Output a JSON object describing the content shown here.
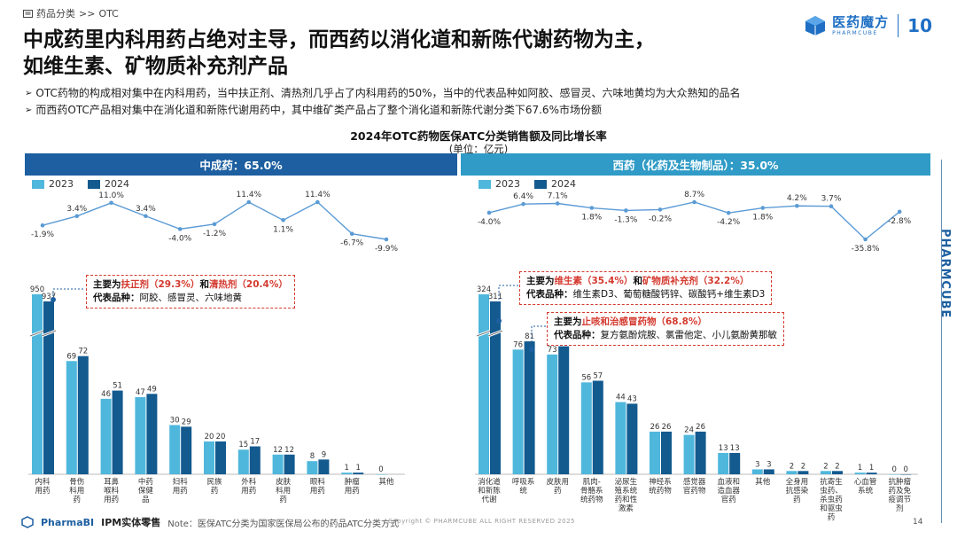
{
  "breadcrumb": {
    "section": "药品分类",
    "sep": ">>",
    "current": "OTC"
  },
  "logo": {
    "cn": "医药魔方",
    "en": "PHARMCUBE",
    "anniversary": "10"
  },
  "headline": {
    "line1": "中成药里内科用药占绝对主导，而西药以消化道和新陈代谢药物为主，",
    "line2": "如维生素、矿物质补充剂产品"
  },
  "bullets": [
    "OTC药物的构成相对集中在内科用药，当中扶正剂、清热剂几乎占了内科用药的50%，当中的代表品种如阿胶、感冒灵、六味地黄均为大众熟知的品名",
    "而西药OTC产品相对集中在消化道和新陈代谢用药中，其中维矿类产品占了整个消化道和新陈代谢分类下67.6%市场份额"
  ],
  "colors": {
    "c2023": "#4fb7dc",
    "c2024": "#135a8f",
    "growth_line": "#5b9bd5",
    "band_left": "#1d5fa0",
    "band_right": "#2f9bc6",
    "callout_red": "#d43a2f"
  },
  "vertical_brand": "PHARMCUBE",
  "callouts": {
    "left": {
      "line1_prefix": "主要为",
      "item1": "扶正剂（29.3%）",
      "mid": "和",
      "item2": "清热剂（20.4%）",
      "line2_label": "代表品种：",
      "line2_text": "阿胶、感冒灵、六味地黄"
    },
    "right1": {
      "line1_prefix": "主要为",
      "item1": "维生素（35.4%）",
      "mid": "和",
      "item2": "矿物质补充剂（32.2%）",
      "line2_label": "代表品种：",
      "line2_text": "维生素D3、葡萄糖酸钙锌、碳酸钙+维生素D3"
    },
    "right2": {
      "line1_prefix": "主要为",
      "item1": "止咳和治感冒药物（68.8%）",
      "line2_label": "代表品种：",
      "line2_text": "复方氨酚烷胺、氯雷他定、小儿氨酚黄那敏"
    }
  },
  "footer": {
    "brand": "PharmaBI",
    "sub": "IPM实体零售",
    "note": "Note：医保ATC分类为国家医保局公布的药品ATC分类方式",
    "copyright": "Copyright © PHARMCUBE ALL RIGHT RESERVED 2025",
    "page": "14"
  },
  "chart_data": {
    "title": "2024年OTC药物医保ATC分类销售额及同比增长率",
    "unit": "(单位：亿元)",
    "legend": [
      "2023",
      "2024"
    ],
    "panels": [
      {
        "header": "中成药：65.0%",
        "type": "bar",
        "categories": [
          "内科用药",
          "骨伤科用药",
          "耳鼻喉科用药",
          "中药保健品",
          "妇科用药",
          "民族药",
          "外科用药",
          "皮肤科用药",
          "眼科用药",
          "肿瘤用药",
          "其他"
        ],
        "series": [
          {
            "name": "2023",
            "values": [
              950,
              69,
              46,
              47,
              30,
              20,
              15,
              12,
              8,
              1,
              0
            ]
          },
          {
            "name": "2024",
            "values": [
              937,
              72,
              51,
              49,
              29,
              20,
              17,
              12,
              9,
              1,
              null
            ]
          }
        ],
        "growth_pct": [
          -1.9,
          3.4,
          11.0,
          3.4,
          -4.0,
          -1.2,
          11.4,
          1.1,
          11.4,
          -6.7,
          -9.9
        ],
        "growth_labels": [
          "-1.9%",
          "3.4%",
          "11.0%",
          "3.4%",
          "-4.0%",
          "-1.2%",
          "11.4%",
          "1.1%",
          "11.4%",
          "-6.7%",
          "-9.9%"
        ]
      },
      {
        "header": "西药（化药及生物制品）：35.0%",
        "type": "bar",
        "categories": [
          "消化道和新陈代谢",
          "呼吸系统",
          "皮肤用药",
          "肌肉-骨骼系统药物",
          "泌尿生殖系统药和性激素",
          "神经系统药物",
          "感觉器官药物",
          "血液和造血器官药",
          "其他",
          "全身用抗感染药",
          "抗寄生虫药、杀虫药和驱虫药",
          "心血管系统",
          "抗肿瘤药及免疫调节剂"
        ],
        "series": [
          {
            "name": "2023",
            "values": [
              324,
              76,
              73,
              56,
              44,
              26,
              24,
              13,
              3,
              2,
              2,
              1,
              0
            ]
          },
          {
            "name": "2024",
            "values": [
              311,
              81,
              78,
              57,
              43,
              26,
              26,
              13,
              3,
              2,
              2,
              1,
              0
            ]
          }
        ],
        "growth_pct": [
          -4.0,
          6.4,
          7.1,
          1.8,
          -1.3,
          -0.2,
          8.7,
          -4.2,
          1.8,
          4.2,
          3.7,
          -35.8,
          -2.8
        ],
        "growth_labels": [
          "-4.0%",
          "6.4%",
          "7.1%",
          "1.8%",
          "-1.3%",
          "-0.2%",
          "8.7%",
          "-4.2%",
          "1.8%",
          "4.2%",
          "3.7%",
          "-35.8%",
          "-2.8%"
        ]
      }
    ]
  }
}
